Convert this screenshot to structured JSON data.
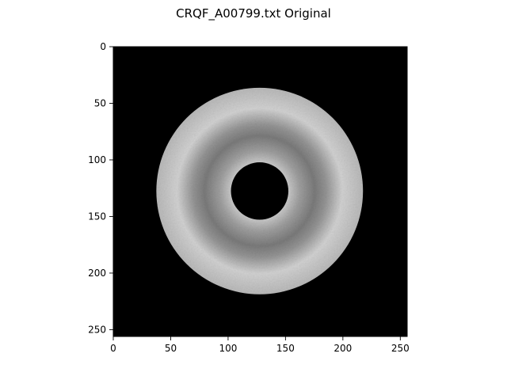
{
  "figure": {
    "title": "CRQF_A00799.txt Original"
  },
  "chart_data": {
    "type": "heatmap",
    "title": "CRQF_A00799.txt Original",
    "xlabel": "",
    "ylabel": "",
    "colormap": "gray",
    "image_size": [
      256,
      256
    ],
    "xlim": [
      0,
      256
    ],
    "ylim": [
      256,
      0
    ],
    "x_ticks": [
      0,
      50,
      100,
      150,
      200,
      250
    ],
    "y_ticks": [
      0,
      50,
      100,
      150,
      200,
      250
    ],
    "x_tick_labels": [
      "0",
      "50",
      "100",
      "150",
      "200",
      "250"
    ],
    "y_tick_labels": [
      "0",
      "50",
      "100",
      "150",
      "200",
      "250"
    ],
    "grid": false,
    "ring": {
      "center": [
        127.5,
        127.5
      ],
      "inner_radius": 25,
      "outer_radius": 90,
      "intensity_profile": [
        {
          "r": 25,
          "value": 0.78
        },
        {
          "r": 35,
          "value": 0.62
        },
        {
          "r": 48,
          "value": 0.48
        },
        {
          "r": 58,
          "value": 0.58
        },
        {
          "r": 72,
          "value": 0.82
        },
        {
          "r": 90,
          "value": 0.72
        }
      ]
    }
  }
}
